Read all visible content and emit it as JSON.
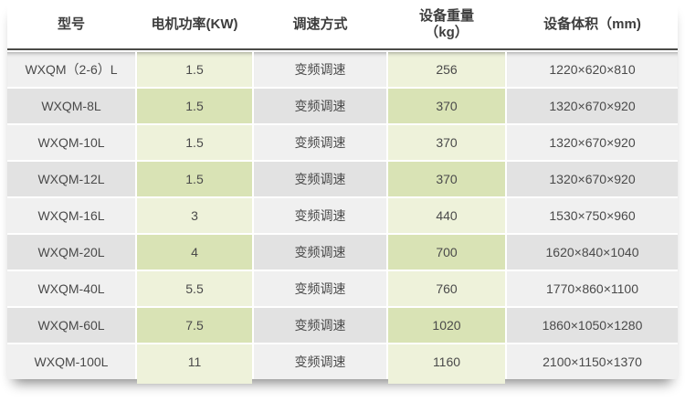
{
  "page": {
    "background": "#ffffff"
  },
  "table": {
    "columns": [
      {
        "label": "型号"
      },
      {
        "label": "电机功率(KW)"
      },
      {
        "label": "调速方式"
      },
      {
        "label": "设备重量",
        "sublabel": "（kg）"
      },
      {
        "label": "设备体积（mm)"
      }
    ],
    "rows": [
      {
        "model": "WXQM（2-6）L",
        "power_kw": "1.5",
        "speed_mode": "变频调速",
        "weight_kg": "256",
        "volume_mm": "1220×620×810"
      },
      {
        "model": "WXQM-8L",
        "power_kw": "1.5",
        "speed_mode": "变频调速",
        "weight_kg": "370",
        "volume_mm": "1320×670×920"
      },
      {
        "model": "WXQM-10L",
        "power_kw": "1.5",
        "speed_mode": "变频调速",
        "weight_kg": "370",
        "volume_mm": "1320×670×920"
      },
      {
        "model": "WXQM-12L",
        "power_kw": "1.5",
        "speed_mode": "变频调速",
        "weight_kg": "370",
        "volume_mm": "1320×670×920"
      },
      {
        "model": "WXQM-16L",
        "power_kw": "3",
        "speed_mode": "变频调速",
        "weight_kg": "440",
        "volume_mm": "1530×750×960"
      },
      {
        "model": "WXQM-20L",
        "power_kw": "4",
        "speed_mode": "变频调速",
        "weight_kg": "700",
        "volume_mm": "1620×840×1040"
      },
      {
        "model": "WXQM-40L",
        "power_kw": "5.5",
        "speed_mode": "变频调速",
        "weight_kg": "760",
        "volume_mm": "1770×860×1100"
      },
      {
        "model": "WXQM-60L",
        "power_kw": "7.5",
        "speed_mode": "变频调速",
        "weight_kg": "1020",
        "volume_mm": "1860×1050×1280"
      },
      {
        "model": "WXQM-100L",
        "power_kw": "11",
        "speed_mode": "变频调速",
        "weight_kg": "1160",
        "volume_mm": "2100×1150×1370"
      }
    ],
    "colors": {
      "row_light": "#f0f0f0",
      "row_dark": "#e2e2e2",
      "green_light": "#eef2da",
      "green_dark": "#d9e3b5",
      "header_rule": "#4b4b48",
      "header_text": "#3d3d3d",
      "cell_text": "#4a4a4a"
    }
  }
}
